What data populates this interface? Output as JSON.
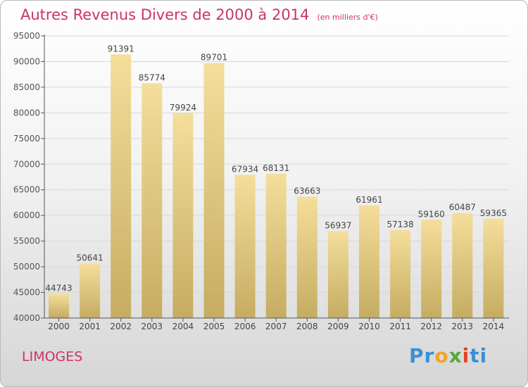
{
  "header": {
    "title": "Autres Revenus Divers de 2000 à 2014",
    "unit": "(en milliers d'€)"
  },
  "footer": {
    "location": "LIMOGES",
    "brand_letters": [
      "P",
      "r",
      "o",
      "x",
      "i",
      "t",
      "i"
    ],
    "brand_colors": [
      "#3b8fd6",
      "#3b8fd6",
      "#f2a32a",
      "#5aa83b",
      "#e2432b",
      "#3b8fd6",
      "#3b8fd6"
    ]
  },
  "colors": {
    "bar_top": "#f4de9a",
    "bar_bottom": "#c5ac62",
    "accent": "#cc3366",
    "grid": "#d8d8d8",
    "axis": "#555555"
  },
  "chart_data": {
    "type": "bar",
    "title": "Autres Revenus Divers de 2000 à 2014",
    "xlabel": "",
    "ylabel": "",
    "categories": [
      "2000",
      "2001",
      "2002",
      "2003",
      "2004",
      "2005",
      "2006",
      "2007",
      "2008",
      "2009",
      "2010",
      "2011",
      "2012",
      "2013",
      "2014"
    ],
    "values": [
      44743,
      50641,
      91391,
      85774,
      79924,
      89701,
      67934,
      68131,
      63663,
      56937,
      61961,
      57138,
      59160,
      60487,
      59365
    ],
    "ylim": [
      40000,
      95000
    ],
    "yticks": [
      40000,
      45000,
      50000,
      55000,
      60000,
      65000,
      70000,
      75000,
      80000,
      85000,
      90000,
      95000
    ],
    "grid": true,
    "data_labels": true
  }
}
